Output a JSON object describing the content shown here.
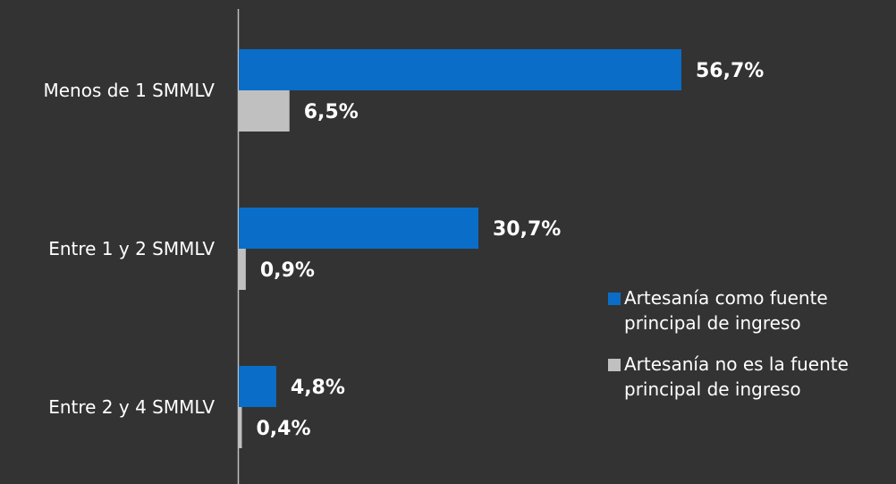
{
  "chart_data": {
    "type": "bar",
    "orientation": "horizontal",
    "categories": [
      "Menos de 1 SMMLV",
      "Entre 1 y 2 SMMLV",
      "Entre 2 y 4 SMMLV"
    ],
    "series": [
      {
        "name": "Artesanía como fuente principal de ingreso",
        "name_lines": [
          "Artesanía como fuente",
          "principal de ingreso"
        ],
        "color": "#0a6ec8",
        "values": [
          56.7,
          30.7,
          4.8
        ],
        "labels": [
          "56,7%",
          "30,7%",
          "4,8%"
        ]
      },
      {
        "name": "Artesanía no es la fuente principal de ingreso",
        "name_lines": [
          "Artesanía no es la fuente",
          "principal de ingreso"
        ],
        "color": "#c0c0c0",
        "values": [
          6.5,
          0.9,
          0.4
        ],
        "labels": [
          "6,5%",
          "0,9%",
          "0,4%"
        ]
      }
    ],
    "xlim": [
      0,
      100
    ],
    "grid": false,
    "legend": "right",
    "axis_color": "#bfbfbf",
    "background": "#333333"
  }
}
